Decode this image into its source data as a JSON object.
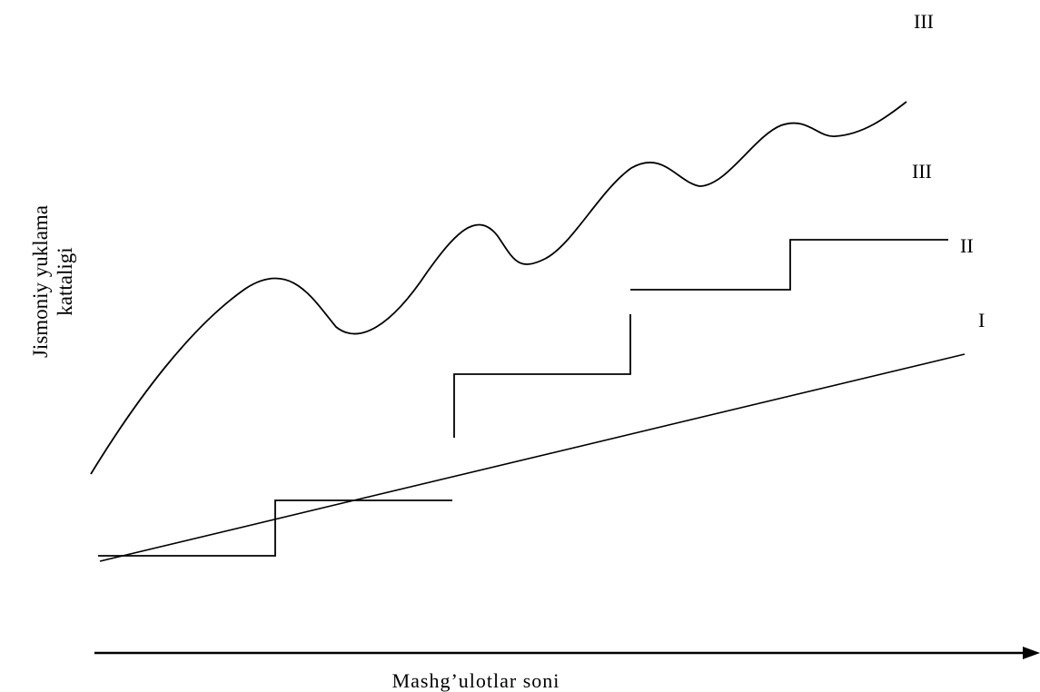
{
  "diagram": {
    "y_axis_label": [
      "Jismoniy yuklama",
      "kattaligi"
    ],
    "x_axis_label": "Mashg’ulotlar soni",
    "curves": {
      "I": {
        "label": "I",
        "kind": "straight-line"
      },
      "II": {
        "label": "II",
        "kind": "stepped-line"
      },
      "III_wave": {
        "label": "III",
        "kind": "wave-line"
      },
      "III_top": {
        "label": "III"
      }
    },
    "colors": {
      "stroke": "#000000",
      "background": "#ffffff"
    }
  }
}
